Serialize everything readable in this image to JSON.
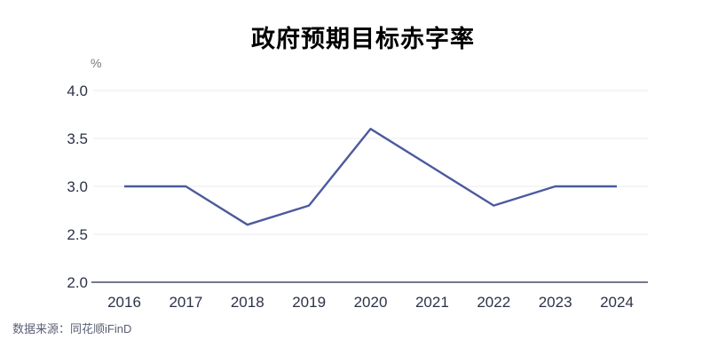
{
  "title": "政府预期目标赤字率",
  "unit_label": "%",
  "source": "数据来源：同花顺iFinD",
  "colors": {
    "line": "#4d5a9d",
    "grid": "#ebebf3",
    "axis": "#454c66",
    "tick_text": "#2d3247",
    "title_text": "#000000",
    "unit_text": "#75777e",
    "source_text": "#5a5f73",
    "background": "#ffffff"
  },
  "chart_data": {
    "type": "line",
    "title": "政府预期目标赤字率",
    "ylabel": "%",
    "xlabel": "",
    "categories": [
      "2016",
      "2017",
      "2018",
      "2019",
      "2020",
      "2021",
      "2022",
      "2023",
      "2024"
    ],
    "series": [
      {
        "name": "政府预期目标赤字率",
        "values": [
          3.0,
          3.0,
          2.6,
          2.8,
          3.6,
          3.2,
          2.8,
          3.0,
          3.0
        ]
      }
    ],
    "ylim": [
      2.0,
      4.0
    ],
    "yticks": [
      "2.0",
      "2.5",
      "3.0",
      "3.5",
      "4.0"
    ],
    "grid": true,
    "legend": false,
    "source": "数据来源：同花顺iFinD"
  }
}
